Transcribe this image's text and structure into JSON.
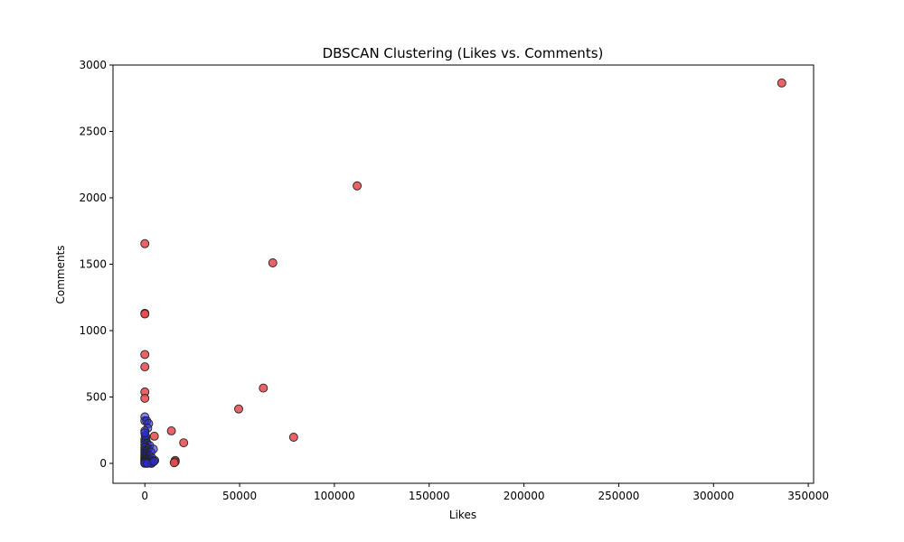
{
  "chart_data": {
    "type": "scatter",
    "title": "DBSCAN Clustering (Likes vs. Comments)",
    "xlabel": "Likes",
    "ylabel": "Comments",
    "xlim": [
      -16800,
      352800
    ],
    "ylim": [
      -150,
      3000
    ],
    "xticks": [
      0,
      50000,
      100000,
      150000,
      200000,
      250000,
      300000,
      350000
    ],
    "yticks": [
      0,
      500,
      1000,
      1500,
      2000,
      2500,
      3000
    ],
    "grid": false,
    "colors": {
      "noise": "#e8484a",
      "cluster": "#2b2bd9",
      "edge": "#222222"
    },
    "series": [
      {
        "name": "",
        "role": "noise",
        "points": [
          [
            336000,
            2865
          ],
          [
            112000,
            2090
          ],
          [
            67500,
            1510
          ],
          [
            0,
            1655
          ],
          [
            0,
            1130
          ],
          [
            0,
            1125
          ],
          [
            0,
            820
          ],
          [
            0,
            727
          ],
          [
            0,
            538
          ],
          [
            0,
            490
          ],
          [
            62500,
            567
          ],
          [
            49500,
            410
          ],
          [
            78500,
            197
          ],
          [
            14000,
            245
          ],
          [
            20500,
            155
          ],
          [
            5000,
            205
          ],
          [
            16000,
            22
          ],
          [
            16000,
            12
          ],
          [
            15500,
            5
          ]
        ]
      },
      {
        "name": "",
        "role": "cluster",
        "points": [
          [
            0,
            350
          ],
          [
            0,
            320
          ],
          [
            1000,
            320
          ],
          [
            2000,
            300
          ],
          [
            1500,
            265
          ],
          [
            0,
            245
          ],
          [
            500,
            200
          ],
          [
            0,
            180
          ],
          [
            700,
            170
          ],
          [
            0,
            160
          ],
          [
            1200,
            150
          ],
          [
            0,
            140
          ],
          [
            2500,
            135
          ],
          [
            300,
            125
          ],
          [
            0,
            118
          ],
          [
            1800,
            110
          ],
          [
            4500,
            108
          ],
          [
            0,
            100
          ],
          [
            900,
            95
          ],
          [
            0,
            88
          ],
          [
            3200,
            85
          ],
          [
            0,
            78
          ],
          [
            600,
            72
          ],
          [
            0,
            65
          ],
          [
            2200,
            60
          ],
          [
            0,
            55
          ],
          [
            1400,
            50
          ],
          [
            0,
            45
          ],
          [
            3800,
            40
          ],
          [
            0,
            38
          ],
          [
            800,
            32
          ],
          [
            0,
            28
          ],
          [
            2600,
            25
          ],
          [
            5200,
            22
          ],
          [
            0,
            20
          ],
          [
            1100,
            18
          ],
          [
            0,
            14
          ],
          [
            3000,
            12
          ],
          [
            4200,
            10
          ],
          [
            0,
            8
          ],
          [
            600,
            6
          ],
          [
            1900,
            5
          ],
          [
            0,
            3
          ],
          [
            2800,
            2
          ],
          [
            3500,
            0
          ],
          [
            0,
            0
          ],
          [
            1300,
            0
          ],
          [
            4800,
            15
          ],
          [
            200,
            210
          ],
          [
            0,
            230
          ]
        ]
      }
    ]
  }
}
